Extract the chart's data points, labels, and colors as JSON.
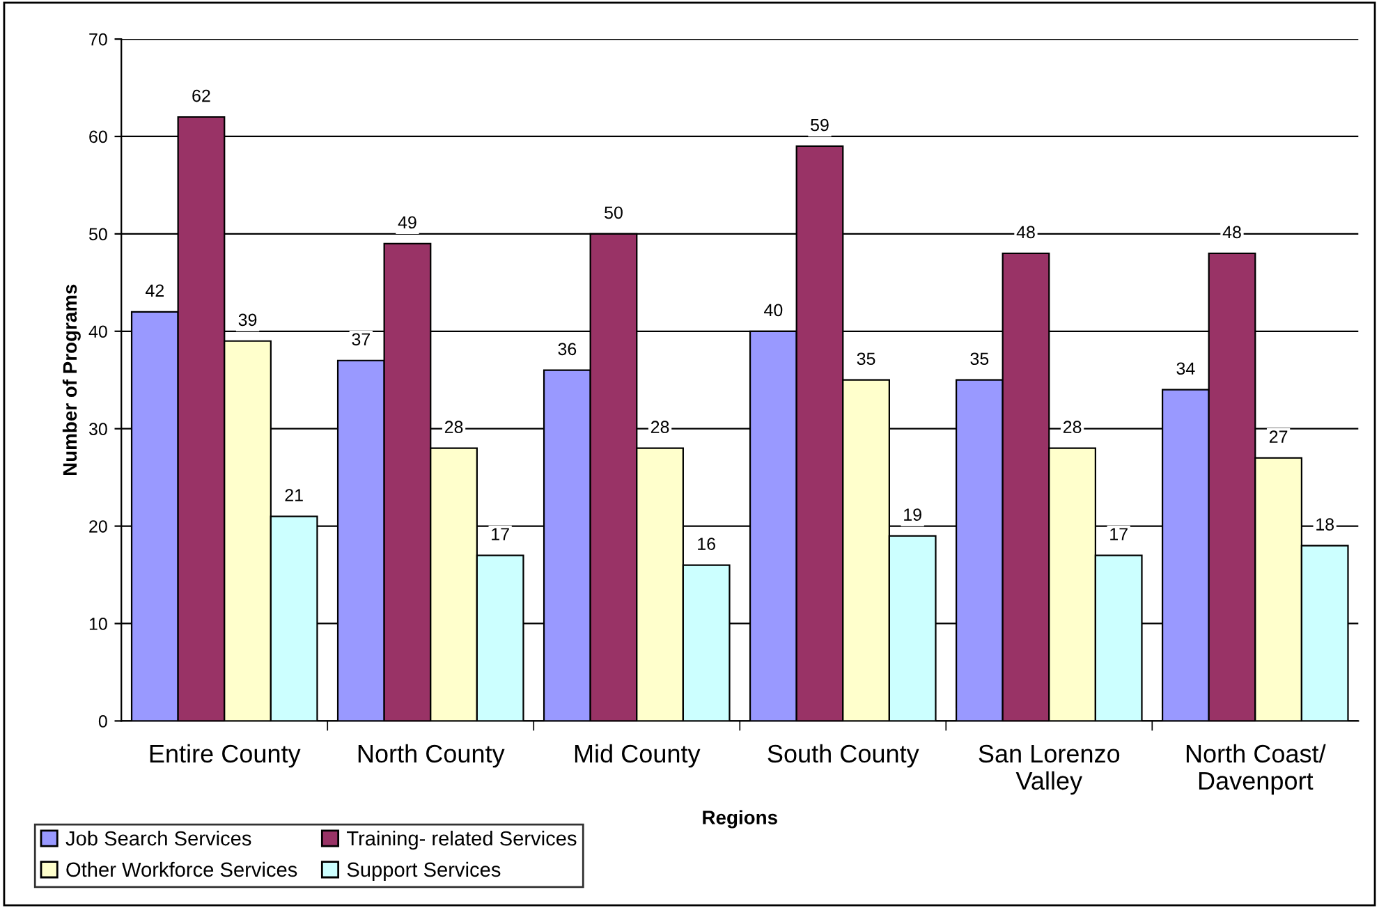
{
  "chart_data": {
    "type": "bar",
    "xlabel": "Regions",
    "ylabel": "Number of Programs",
    "categories": [
      "Entire County",
      "North County",
      "Mid County",
      "South County",
      "San Lorenzo\nValley",
      "North Coast/\nDavenport"
    ],
    "series": [
      {
        "name": "Job Search Services",
        "color": "#9999ff",
        "values": [
          42,
          37,
          36,
          40,
          35,
          34
        ]
      },
      {
        "name": "Training- related Services",
        "color": "#993366",
        "values": [
          62,
          49,
          50,
          59,
          48,
          48
        ]
      },
      {
        "name": "Other Workforce Services",
        "color": "#ffffcc",
        "values": [
          39,
          28,
          28,
          35,
          28,
          27
        ]
      },
      {
        "name": "Support Services",
        "color": "#ccffff",
        "values": [
          21,
          17,
          16,
          19,
          17,
          18
        ]
      }
    ],
    "ylim": [
      0,
      70
    ],
    "yticks": [
      0,
      10,
      20,
      30,
      40,
      50,
      60,
      70
    ],
    "grid": "y",
    "legend": "bottom left",
    "data_labels": true
  }
}
